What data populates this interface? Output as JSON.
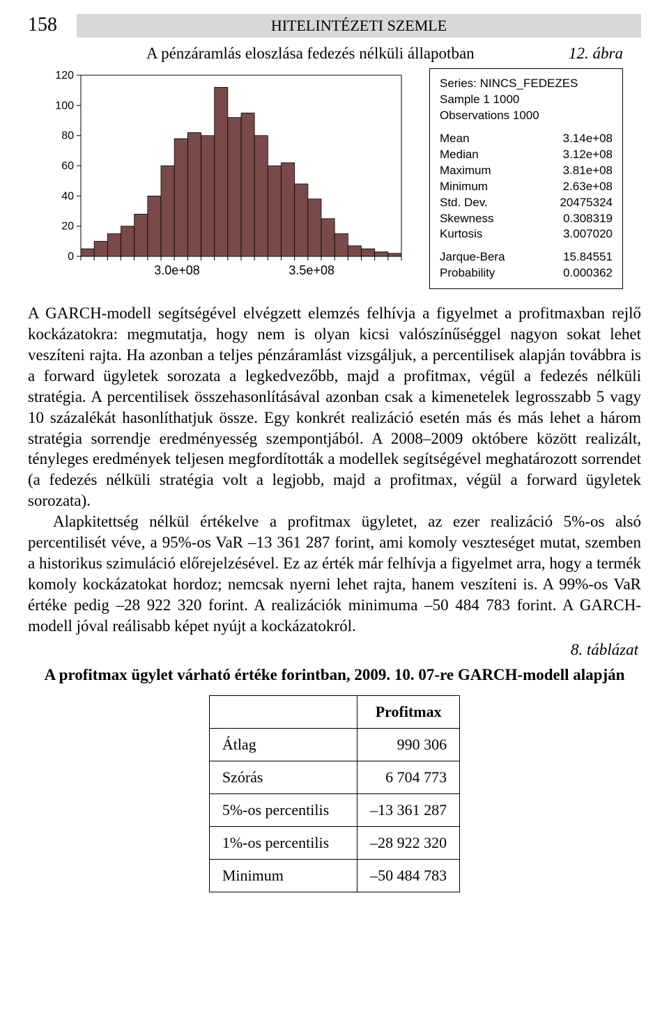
{
  "page_number": "158",
  "header_title": "HITELINTÉZETI SZEMLE",
  "figure": {
    "caption": "A pénzáramlás eloszlása fedezés nélküli állapotban",
    "tag": "12. ábra"
  },
  "chart": {
    "type": "histogram",
    "yticks": [
      "120",
      "100",
      "80",
      "60",
      "40",
      "20",
      "0"
    ],
    "xticks": [
      "3.0e+08",
      "3.5e+08"
    ],
    "bg_color": "#ffffff",
    "axis_color": "#000000",
    "bar_fill": "#7a4a4a",
    "bar_stroke": "#000000",
    "xtick_positions": [
      0.3,
      0.72
    ],
    "ylim": [
      0,
      120
    ],
    "bars": [
      5,
      10,
      15,
      20,
      28,
      40,
      60,
      78,
      82,
      80,
      112,
      92,
      95,
      80,
      60,
      62,
      48,
      38,
      25,
      15,
      7,
      5,
      3,
      2
    ]
  },
  "stats": {
    "header": [
      "Series: NINCS_FEDEZES",
      "Sample 1 1000",
      "Observations 1000"
    ],
    "rows1": [
      [
        "Mean",
        "3.14e+08"
      ],
      [
        "Median",
        "3.12e+08"
      ],
      [
        "Maximum",
        "3.81e+08"
      ],
      [
        "Minimum",
        "2.63e+08"
      ],
      [
        "Std. Dev.",
        "20475324"
      ],
      [
        "Skewness",
        "0.308319"
      ],
      [
        "Kurtosis",
        "3.007020"
      ]
    ],
    "rows2": [
      [
        "Jarque-Bera",
        "15.84551"
      ],
      [
        "Probability",
        "0.000362"
      ]
    ]
  },
  "paragraphs": [
    "A GARCH-modell segítségével elvégzett elemzés felhívja a figyelmet a profitmaxban rejlő kockázatokra: megmutatja, hogy nem is olyan kicsi valószínűséggel nagyon sokat lehet veszíteni rajta. Ha azonban a teljes pénzáramlást vizsgáljuk, a percentilisek alapján továbbra is a forward ügyletek sorozata a legkedvezőbb, majd a profitmax, végül a fedezés nélküli stratégia. A percentilisek összehasonlításával azonban csak a kimenetelek legrosszabb 5 vagy 10 százalékát hasonlíthatjuk össze. Egy konkrét realizáció esetén más és más lehet a három stratégia sorrendje eredményesség szempontjából. A 2008–2009 októbere között realizált, tényleges eredmények teljesen megfordították a modellek segítségével meghatározott sorrendet (a fedezés nélküli stratégia volt a legjobb, majd a profitmax, végül a forward ügyletek sorozata).",
    "Alapkitettség nélkül értékelve a profitmax ügyletet, az ezer realizáció 5%-os alsó percentilisét véve, a 95%-os VaR –13 361 287 forint, ami komoly veszteséget mutat, szemben a historikus szimuláció előrejelzésével. Ez az érték már felhívja a figyelmet arra, hogy a termék komoly kockázatokat hordoz; nemcsak nyerni lehet rajta, hanem veszíteni is. A 99%-os VaR értéke pedig –28 922 320 forint. A realizációk minimuma –50 484 783 forint. A GARCH-modell jóval reálisabb képet nyújt a kockázatokról."
  ],
  "table": {
    "tag": "8. táblázat",
    "caption": "A profitmax ügylet várható értéke forintban, 2009. 10. 07-re GARCH-modell alapján",
    "header": "Profitmax",
    "rows": [
      [
        "Átlag",
        "990 306"
      ],
      [
        "Szórás",
        "6 704 773"
      ],
      [
        "5%-os percentilis",
        "–13 361 287"
      ],
      [
        "1%-os percentilis",
        "–28 922 320"
      ],
      [
        "Minimum",
        "–50 484 783"
      ]
    ]
  }
}
